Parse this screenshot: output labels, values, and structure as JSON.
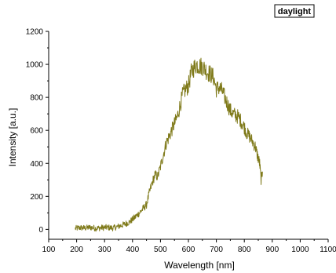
{
  "chart_data": {
    "type": "line",
    "title": "",
    "xlabel": "Wavelength [nm]",
    "ylabel": "Intensity [a.u.]",
    "xlim": [
      100,
      1100
    ],
    "ylim": [
      -60,
      1200
    ],
    "x_ticks": [
      100,
      200,
      300,
      400,
      500,
      600,
      700,
      800,
      900,
      1000,
      1100
    ],
    "y_ticks": [
      0,
      200,
      400,
      600,
      800,
      1000,
      1200
    ],
    "grid": false,
    "legend_position": "top-right",
    "series": [
      {
        "name": "daylight",
        "color": "#7f7a1a",
        "x": [
          195,
          210,
          230,
          250,
          270,
          290,
          310,
          330,
          350,
          370,
          390,
          410,
          430,
          450,
          460,
          470,
          480,
          490,
          500,
          510,
          520,
          530,
          540,
          550,
          560,
          570,
          580,
          590,
          600,
          610,
          620,
          630,
          640,
          650,
          660,
          670,
          680,
          690,
          700,
          710,
          720,
          730,
          740,
          750,
          760,
          770,
          780,
          790,
          800,
          810,
          820,
          830,
          840,
          845,
          850,
          855,
          860,
          865
        ],
        "y": [
          5,
          10,
          8,
          12,
          6,
          10,
          12,
          8,
          18,
          30,
          45,
          75,
          110,
          150,
          220,
          280,
          330,
          320,
          380,
          450,
          520,
          560,
          600,
          640,
          680,
          750,
          820,
          850,
          870,
          950,
          980,
          1000,
          990,
          990,
          970,
          950,
          940,
          920,
          850,
          860,
          840,
          800,
          760,
          720,
          700,
          690,
          680,
          650,
          620,
          580,
          560,
          530,
          500,
          460,
          430,
          400,
          300,
          350
        ]
      }
    ]
  }
}
